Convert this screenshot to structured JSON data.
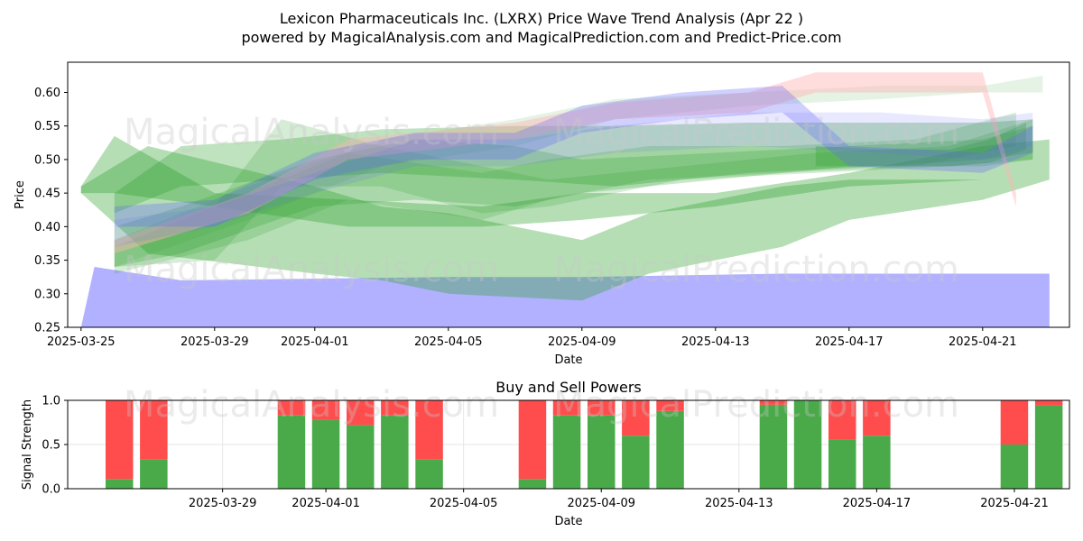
{
  "title_line1": "Lexicon Pharmaceuticals Inc. (LXRX) Price Wave Trend Analysis (Apr 22 )",
  "title_line2": "powered by MagicalAnalysis.com and MagicalPrediction.com and Predict-Price.com",
  "watermarks": [
    "MagicalAnalysis.com",
    "MagicalPrediction.com"
  ],
  "colors": {
    "green": "#2ca02c",
    "blue": "#6464ff",
    "red": "#ff5050",
    "pink": "#ffb4b4",
    "bar_buy": "#4aaa4a",
    "bar_sell": "#ff4c4c"
  },
  "chart_data": [
    {
      "type": "area",
      "title": "",
      "xlabel": "Date",
      "ylabel": "Price",
      "xlim": [
        "2025-03-24.6",
        "2025-04-23.6"
      ],
      "ylim": [
        0.25,
        0.645
      ],
      "x_ticks": [
        "2025-03-25",
        "2025-03-29",
        "2025-04-01",
        "2025-04-05",
        "2025-04-09",
        "2025-04-13",
        "2025-04-17",
        "2025-04-21"
      ],
      "y_ticks": [
        0.25,
        0.3,
        0.35,
        0.4,
        0.45,
        0.5,
        0.55,
        0.6
      ],
      "grid": false,
      "bands": [
        {
          "color": "blue",
          "opacity": 0.5,
          "x": [
            "2025-03-25",
            "2025-03-25.4",
            "2025-03-28",
            "2025-04-05",
            "2025-04-09",
            "2025-04-15",
            "2025-04-21",
            "2025-04-23"
          ],
          "upper": [
            0.25,
            0.34,
            0.32,
            0.325,
            0.325,
            0.33,
            0.33,
            0.33
          ],
          "lower": [
            0.25,
            0.25,
            0.25,
            0.25,
            0.25,
            0.25,
            0.25,
            0.25
          ]
        },
        {
          "color": "green",
          "opacity": 0.35,
          "x": [
            "2025-03-25",
            "2025-03-27",
            "2025-04-01",
            "2025-04-03",
            "2025-04-05",
            "2025-04-09",
            "2025-04-11",
            "2025-04-15",
            "2025-04-17",
            "2025-04-21",
            "2025-04-23"
          ],
          "upper": [
            0.46,
            0.52,
            0.46,
            0.43,
            0.42,
            0.38,
            0.42,
            0.46,
            0.47,
            0.47,
            0.48
          ],
          "lower": [
            0.45,
            0.36,
            0.33,
            0.32,
            0.3,
            0.29,
            0.33,
            0.37,
            0.41,
            0.44,
            0.47
          ]
        },
        {
          "color": "green",
          "opacity": 0.35,
          "x": [
            "2025-03-25",
            "2025-03-26",
            "2025-03-29",
            "2025-04-02",
            "2025-04-06",
            "2025-04-09",
            "2025-04-13",
            "2025-04-17",
            "2025-04-21",
            "2025-04-23"
          ],
          "upper": [
            0.46,
            0.535,
            0.45,
            0.44,
            0.43,
            0.45,
            0.45,
            0.48,
            0.52,
            0.53
          ],
          "lower": [
            0.45,
            0.45,
            0.43,
            0.4,
            0.4,
            0.41,
            0.43,
            0.46,
            0.47,
            0.48
          ]
        },
        {
          "color": "green",
          "opacity": 0.3,
          "x": [
            "2025-03-26",
            "2025-03-28",
            "2025-03-31",
            "2025-04-03",
            "2025-04-07",
            "2025-04-10",
            "2025-04-14",
            "2025-04-18",
            "2025-04-21",
            "2025-04-22.5"
          ],
          "upper": [
            0.45,
            0.52,
            0.53,
            0.545,
            0.55,
            0.55,
            0.555,
            0.555,
            0.555,
            0.56
          ],
          "lower": [
            0.42,
            0.46,
            0.47,
            0.48,
            0.47,
            0.46,
            0.48,
            0.49,
            0.5,
            0.51
          ]
        },
        {
          "color": "green",
          "opacity": 0.25,
          "x": [
            "2025-03-26",
            "2025-03-28",
            "2025-04-01",
            "2025-04-04",
            "2025-04-07",
            "2025-04-09",
            "2025-04-13",
            "2025-04-17",
            "2025-04-21",
            "2025-04-22.5"
          ],
          "upper": [
            0.4,
            0.43,
            0.5,
            0.53,
            0.52,
            0.5,
            0.51,
            0.52,
            0.53,
            0.55
          ],
          "lower": [
            0.34,
            0.36,
            0.43,
            0.44,
            0.43,
            0.45,
            0.47,
            0.49,
            0.49,
            0.5
          ]
        },
        {
          "color": "green",
          "opacity": 0.2,
          "x": [
            "2025-03-26",
            "2025-03-29",
            "2025-03-31",
            "2025-04-03",
            "2025-04-06",
            "2025-04-08",
            "2025-04-12",
            "2025-04-16",
            "2025-04-20",
            "2025-04-22.5"
          ],
          "upper": [
            0.37,
            0.43,
            0.56,
            0.52,
            0.49,
            0.47,
            0.49,
            0.51,
            0.52,
            0.56
          ],
          "lower": [
            0.34,
            0.35,
            0.46,
            0.46,
            0.42,
            0.43,
            0.47,
            0.48,
            0.49,
            0.5
          ]
        },
        {
          "color": "green",
          "opacity": 0.2,
          "x": [
            "2025-03-26",
            "2025-03-30",
            "2025-04-02",
            "2025-04-06",
            "2025-04-08",
            "2025-04-11",
            "2025-04-15",
            "2025-04-19",
            "2025-04-22"
          ],
          "upper": [
            0.38,
            0.45,
            0.51,
            0.48,
            0.5,
            0.52,
            0.52,
            0.53,
            0.57
          ],
          "lower": [
            0.33,
            0.38,
            0.44,
            0.41,
            0.44,
            0.47,
            0.48,
            0.49,
            0.52
          ]
        },
        {
          "color": "green",
          "opacity": 0.3,
          "x": [
            "2025-04-16",
            "2025-04-18",
            "2025-04-20",
            "2025-04-21.2",
            "2025-04-22.3"
          ],
          "upper": [
            0.52,
            0.515,
            0.515,
            0.53,
            0.555
          ],
          "lower": [
            0.49,
            0.49,
            0.49,
            0.495,
            0.515
          ]
        },
        {
          "color": "green",
          "opacity": 0.12,
          "x": [
            "2025-03-26",
            "2025-03-30",
            "2025-04-03",
            "2025-04-07",
            "2025-04-10",
            "2025-04-14",
            "2025-04-18",
            "2025-04-21",
            "2025-04-22.8"
          ],
          "upper": [
            0.38,
            0.46,
            0.53,
            0.56,
            0.59,
            0.6,
            0.61,
            0.61,
            0.625
          ],
          "lower": [
            0.34,
            0.41,
            0.49,
            0.52,
            0.56,
            0.58,
            0.59,
            0.6,
            0.6
          ]
        },
        {
          "color": "pink",
          "opacity": 0.45,
          "x": [
            "2025-03-26",
            "2025-03-30",
            "2025-04-02",
            "2025-04-07",
            "2025-04-10",
            "2025-04-14",
            "2025-04-16",
            "2025-04-21",
            "2025-04-22"
          ],
          "upper": [
            0.38,
            0.45,
            0.53,
            0.555,
            0.585,
            0.6,
            0.63,
            0.63,
            0.45
          ],
          "lower": [
            0.36,
            0.42,
            0.5,
            0.53,
            0.56,
            0.57,
            0.6,
            0.6,
            0.43
          ]
        },
        {
          "color": "blue",
          "opacity": 0.3,
          "x": [
            "2025-03-26",
            "2025-03-29",
            "2025-04-01",
            "2025-04-04",
            "2025-04-07",
            "2025-04-09",
            "2025-04-12",
            "2025-04-15",
            "2025-04-17",
            "2025-04-21",
            "2025-04-22.5"
          ],
          "upper": [
            0.43,
            0.44,
            0.51,
            0.54,
            0.54,
            0.58,
            0.6,
            0.61,
            0.52,
            0.51,
            0.55
          ],
          "lower": [
            0.4,
            0.4,
            0.47,
            0.5,
            0.5,
            0.54,
            0.56,
            0.57,
            0.49,
            0.48,
            0.51
          ]
        },
        {
          "color": "blue",
          "opacity": 0.15,
          "x": [
            "2025-03-26",
            "2025-03-29",
            "2025-04-01",
            "2025-04-04",
            "2025-04-07",
            "2025-04-10",
            "2025-04-14",
            "2025-04-18",
            "2025-04-21",
            "2025-04-22.5"
          ],
          "upper": [
            0.41,
            0.43,
            0.48,
            0.53,
            0.53,
            0.55,
            0.57,
            0.57,
            0.56,
            0.57
          ],
          "lower": [
            0.37,
            0.4,
            0.45,
            0.49,
            0.49,
            0.51,
            0.52,
            0.51,
            0.5,
            0.52
          ]
        }
      ]
    },
    {
      "type": "bar",
      "title": "Buy and Sell Powers",
      "xlabel": "Date",
      "ylabel": "Signal Strength",
      "ylim": [
        0,
        1.0
      ],
      "y_ticks": [
        0.0,
        0.5,
        1.0
      ],
      "x_ticks": [
        "2025-03-29",
        "2025-04-01",
        "2025-04-05",
        "2025-04-09",
        "2025-04-13",
        "2025-04-17",
        "2025-04-21"
      ],
      "grid": true,
      "x": [
        "2025-03-26",
        "2025-03-27",
        "2025-03-31",
        "2025-04-01",
        "2025-04-02",
        "2025-04-03",
        "2025-04-04",
        "2025-04-07",
        "2025-04-08",
        "2025-04-09",
        "2025-04-10",
        "2025-04-11",
        "2025-04-14",
        "2025-04-15",
        "2025-04-16",
        "2025-04-17",
        "2025-04-21",
        "2025-04-22"
      ],
      "series": [
        {
          "name": "",
          "color": "green",
          "values": [
            0.11,
            0.33,
            0.83,
            0.78,
            0.72,
            0.83,
            0.33,
            0.11,
            0.83,
            0.83,
            0.6,
            0.88,
            0.95,
            1.0,
            0.56,
            0.6,
            0.5,
            0.94
          ]
        },
        {
          "name": "",
          "color": "red",
          "values": [
            0.89,
            0.67,
            0.17,
            0.22,
            0.28,
            0.17,
            0.67,
            0.89,
            0.17,
            0.17,
            0.4,
            0.12,
            0.05,
            0.0,
            0.44,
            0.4,
            0.5,
            0.06
          ]
        }
      ]
    }
  ]
}
